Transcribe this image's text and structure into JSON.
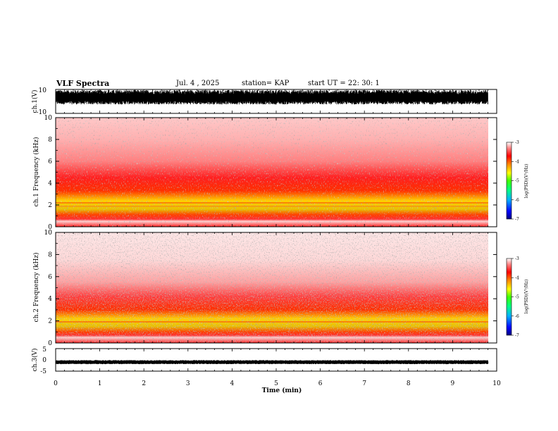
{
  "header": {
    "title": "VLF Spectra",
    "date": "Jul. 4 , 2025",
    "station": "station= KAP",
    "start": "start UT = 22: 30: 1"
  },
  "colors": {
    "spectrogram_scale": [
      "#000080",
      "#0000ff",
      "#00b0ff",
      "#00ff80",
      "#40ff00",
      "#ffff00",
      "#ff8000",
      "#ff0000",
      "#ff8080",
      "#ffffff"
    ],
    "waveform": "#000000"
  },
  "chart_data": [
    {
      "type": "line",
      "name": "ch1-waveform",
      "ylabel": "ch.1(V)",
      "ylim": [
        -10,
        10
      ],
      "yticks": [
        "10",
        "-10"
      ],
      "xlim": [
        0,
        10
      ],
      "description_of_signal": "dense waveform clipped near +9 and -2 V"
    },
    {
      "type": "heatmap",
      "name": "ch1-spectrogram",
      "ylabel": "ch.1 Frequency (kHz)",
      "ylim": [
        0,
        10
      ],
      "yticks": [
        "0",
        "2",
        "4",
        "6",
        "8",
        "10"
      ],
      "xlim": [
        0,
        9.8
      ],
      "colorbar": {
        "label": "log(PSD)(V²/Hz)",
        "min": -7,
        "max": -3,
        "ticks": [
          "-3",
          "-4",
          "-5",
          "-6",
          "-7"
        ]
      },
      "bands": [
        {
          "from_khz": 0.7,
          "to_khz": 3.3,
          "level": -4.5
        },
        {
          "from_khz": 3.3,
          "to_khz": 5.0,
          "level": -4.0
        },
        {
          "from_khz": 5.0,
          "to_khz": 10.0,
          "level": -3.4
        }
      ]
    },
    {
      "type": "heatmap",
      "name": "ch2-spectrogram",
      "ylabel": "ch.2 Frequency (kHz)",
      "ylim": [
        0,
        10
      ],
      "yticks": [
        "0",
        "2",
        "4",
        "6",
        "8",
        "10"
      ],
      "xlim": [
        0,
        9.8
      ],
      "colorbar": {
        "label": "log(PSD)(V²/Hz)",
        "min": -7,
        "max": -3,
        "ticks": [
          "-3",
          "-4",
          "-5",
          "-6",
          "-7"
        ]
      },
      "bands": [
        {
          "from_khz": 0.7,
          "to_khz": 3.0,
          "level": -4.5
        },
        {
          "from_khz": 3.0,
          "to_khz": 4.5,
          "level": -3.9
        },
        {
          "from_khz": 4.5,
          "to_khz": 10.0,
          "level": -3.2
        }
      ]
    },
    {
      "type": "line",
      "name": "ch3-waveform",
      "ylabel": "ch.3(V)",
      "ylim": [
        -5,
        5
      ],
      "yticks": [
        "5",
        "0",
        "-5"
      ],
      "xlim": [
        0,
        10
      ],
      "description_of_signal": "narrow band around -1 V"
    }
  ],
  "xaxis": {
    "label": "Time (min)",
    "ticks": [
      "0",
      "1",
      "2",
      "3",
      "4",
      "5",
      "6",
      "7",
      "8",
      "9",
      "10"
    ]
  }
}
